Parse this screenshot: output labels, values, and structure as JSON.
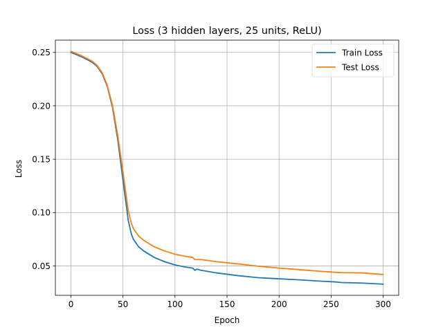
{
  "chart_data": {
    "type": "line",
    "title": "Loss (3 hidden layers, 25 units, ReLU)",
    "xlabel": "Epoch",
    "ylabel": "Loss",
    "xlim": [
      -15,
      315
    ],
    "ylim": [
      0.0225,
      0.2615
    ],
    "xticks": [
      0,
      50,
      100,
      150,
      200,
      250,
      300
    ],
    "yticks": [
      0.05,
      0.1,
      0.15,
      0.2,
      0.25
    ],
    "ytick_labels": [
      "0.05",
      "0.10",
      "0.15",
      "0.20",
      "0.25"
    ],
    "grid": true,
    "legend": "top-right",
    "series": [
      {
        "name": "Train Loss",
        "color": "#1f77b4",
        "x": [
          0,
          10,
          20,
          25,
          30,
          35,
          40,
          45,
          50,
          55,
          58,
          60,
          65,
          70,
          80,
          90,
          100,
          110,
          117,
          119,
          121,
          125,
          140,
          160,
          180,
          200,
          220,
          240,
          255,
          260,
          280,
          300
        ],
        "y": [
          0.25,
          0.246,
          0.241,
          0.237,
          0.23,
          0.218,
          0.198,
          0.168,
          0.13,
          0.093,
          0.08,
          0.075,
          0.068,
          0.064,
          0.058,
          0.054,
          0.051,
          0.049,
          0.048,
          0.046,
          0.047,
          0.046,
          0.0435,
          0.041,
          0.039,
          0.038,
          0.037,
          0.0358,
          0.035,
          0.0345,
          0.034,
          0.033
        ]
      },
      {
        "name": "Test Loss",
        "color": "#ff7f0e",
        "x": [
          0,
          10,
          20,
          25,
          30,
          35,
          40,
          45,
          50,
          55,
          58,
          60,
          65,
          70,
          80,
          90,
          100,
          110,
          117,
          119,
          121,
          125,
          140,
          160,
          180,
          200,
          220,
          240,
          255,
          260,
          280,
          300
        ],
        "y": [
          0.251,
          0.247,
          0.242,
          0.238,
          0.231,
          0.219,
          0.2,
          0.172,
          0.138,
          0.102,
          0.09,
          0.085,
          0.078,
          0.074,
          0.068,
          0.064,
          0.061,
          0.059,
          0.058,
          0.056,
          0.056,
          0.056,
          0.054,
          0.052,
          0.0498,
          0.048,
          0.0465,
          0.045,
          0.044,
          0.0438,
          0.0435,
          0.042
        ]
      }
    ]
  }
}
